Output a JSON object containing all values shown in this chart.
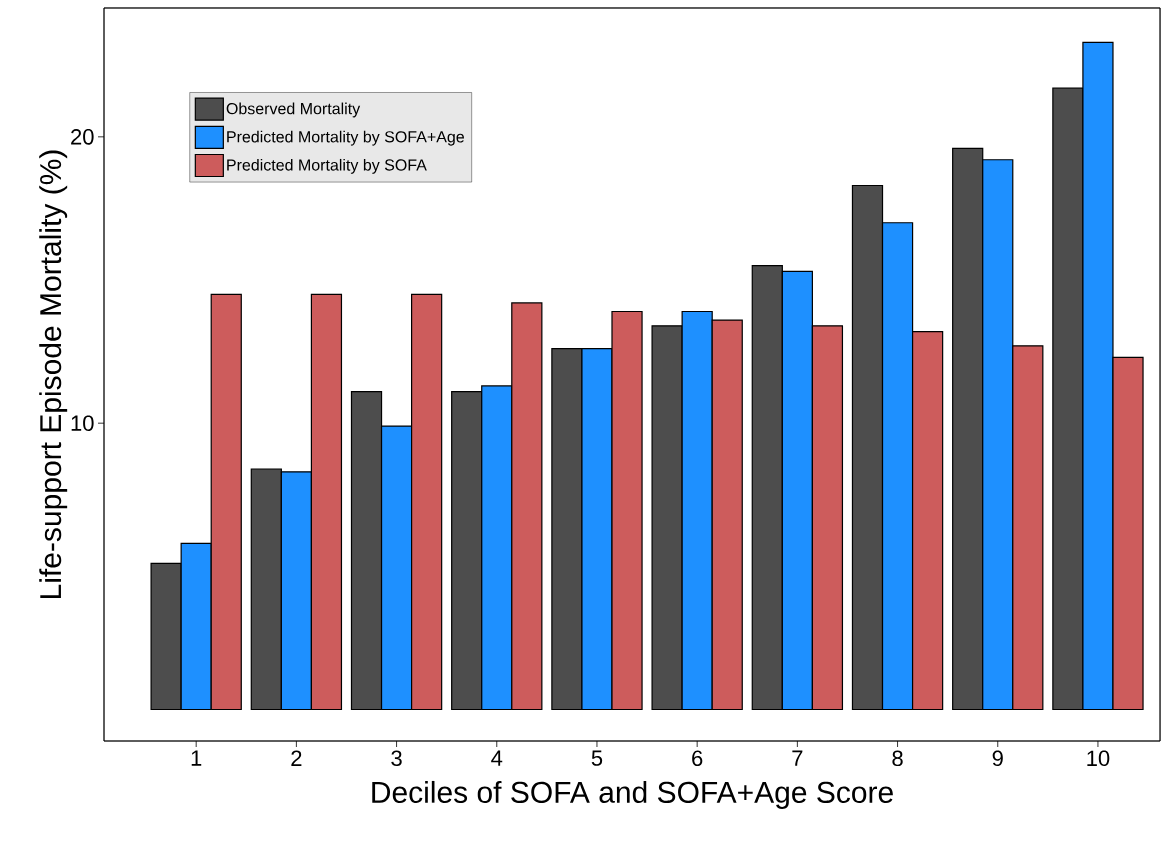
{
  "chart_data": {
    "type": "bar",
    "xlabel": "Deciles of SOFA and SOFA+Age Score",
    "ylabel": "Life-support Episode Mortality (%)",
    "categories": [
      "1",
      "2",
      "3",
      "4",
      "5",
      "6",
      "7",
      "8",
      "9",
      "10"
    ],
    "series": [
      {
        "name": "Observed Mortality",
        "color": "#4d4d4d",
        "values": [
          5.1,
          8.4,
          11.1,
          11.1,
          12.6,
          13.4,
          15.5,
          18.3,
          19.6,
          21.7
        ]
      },
      {
        "name": "Predicted Mortality by SOFA+Age",
        "color": "#1e90ff",
        "values": [
          5.8,
          8.3,
          9.9,
          11.3,
          12.6,
          13.9,
          15.3,
          17.0,
          19.2,
          23.3
        ]
      },
      {
        "name": "Predicted Mortality by SOFA",
        "color": "#cd5c5c",
        "values": [
          14.5,
          14.5,
          14.5,
          14.2,
          13.9,
          13.6,
          13.4,
          13.2,
          12.7,
          12.3
        ]
      }
    ],
    "ylim": [
      -1.1,
      24.5
    ],
    "yticks": [
      10,
      20
    ],
    "legend": "top left"
  }
}
